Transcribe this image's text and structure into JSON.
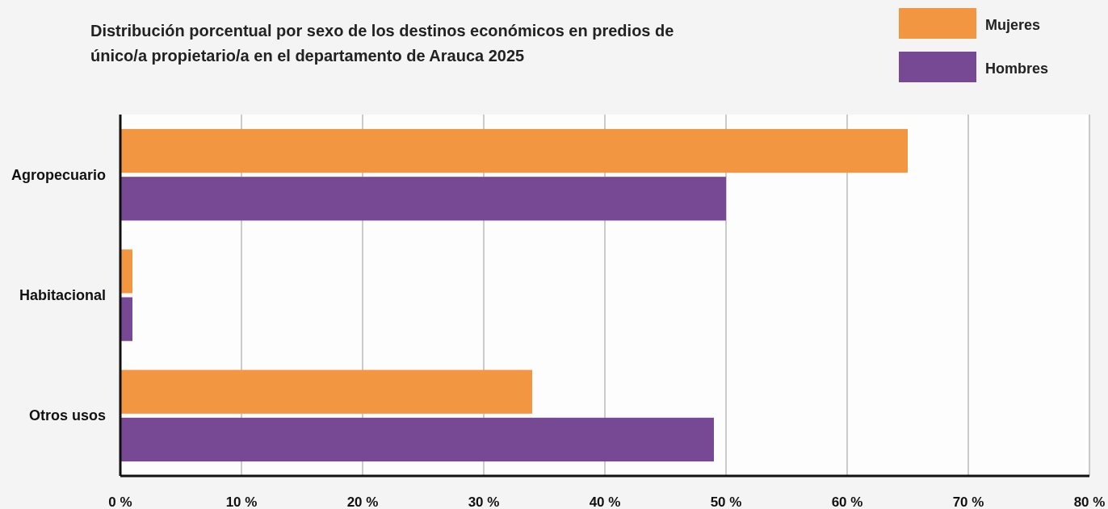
{
  "chart_data": {
    "type": "bar",
    "orientation": "horizontal",
    "title": "Distribución porcentual por sexo de los destinos económicos en predios de único/a propietario/a en el departamento de Arauca 2025",
    "categories": [
      "Agropecuario",
      "Habitacional",
      "Otros usos"
    ],
    "series": [
      {
        "name": "Mujeres",
        "color": "#f39642",
        "values": [
          65,
          1,
          34
        ]
      },
      {
        "name": "Hombres",
        "color": "#774995",
        "values": [
          50,
          1,
          49
        ]
      }
    ],
    "xlim": [
      0,
      80
    ],
    "xticks": [
      {
        "value": 0,
        "label": "0 %"
      },
      {
        "value": 10,
        "label": "10 %"
      },
      {
        "value": 20,
        "label": "20 %"
      },
      {
        "value": 30,
        "label": "30 %"
      },
      {
        "value": 40,
        "label": "40 %"
      },
      {
        "value": 50,
        "label": "50 %"
      },
      {
        "value": 60,
        "label": "60 %"
      },
      {
        "value": 70,
        "label": "70 %"
      },
      {
        "value": 80,
        "label": "80 %"
      }
    ],
    "grid": "x",
    "legend": "top right"
  }
}
